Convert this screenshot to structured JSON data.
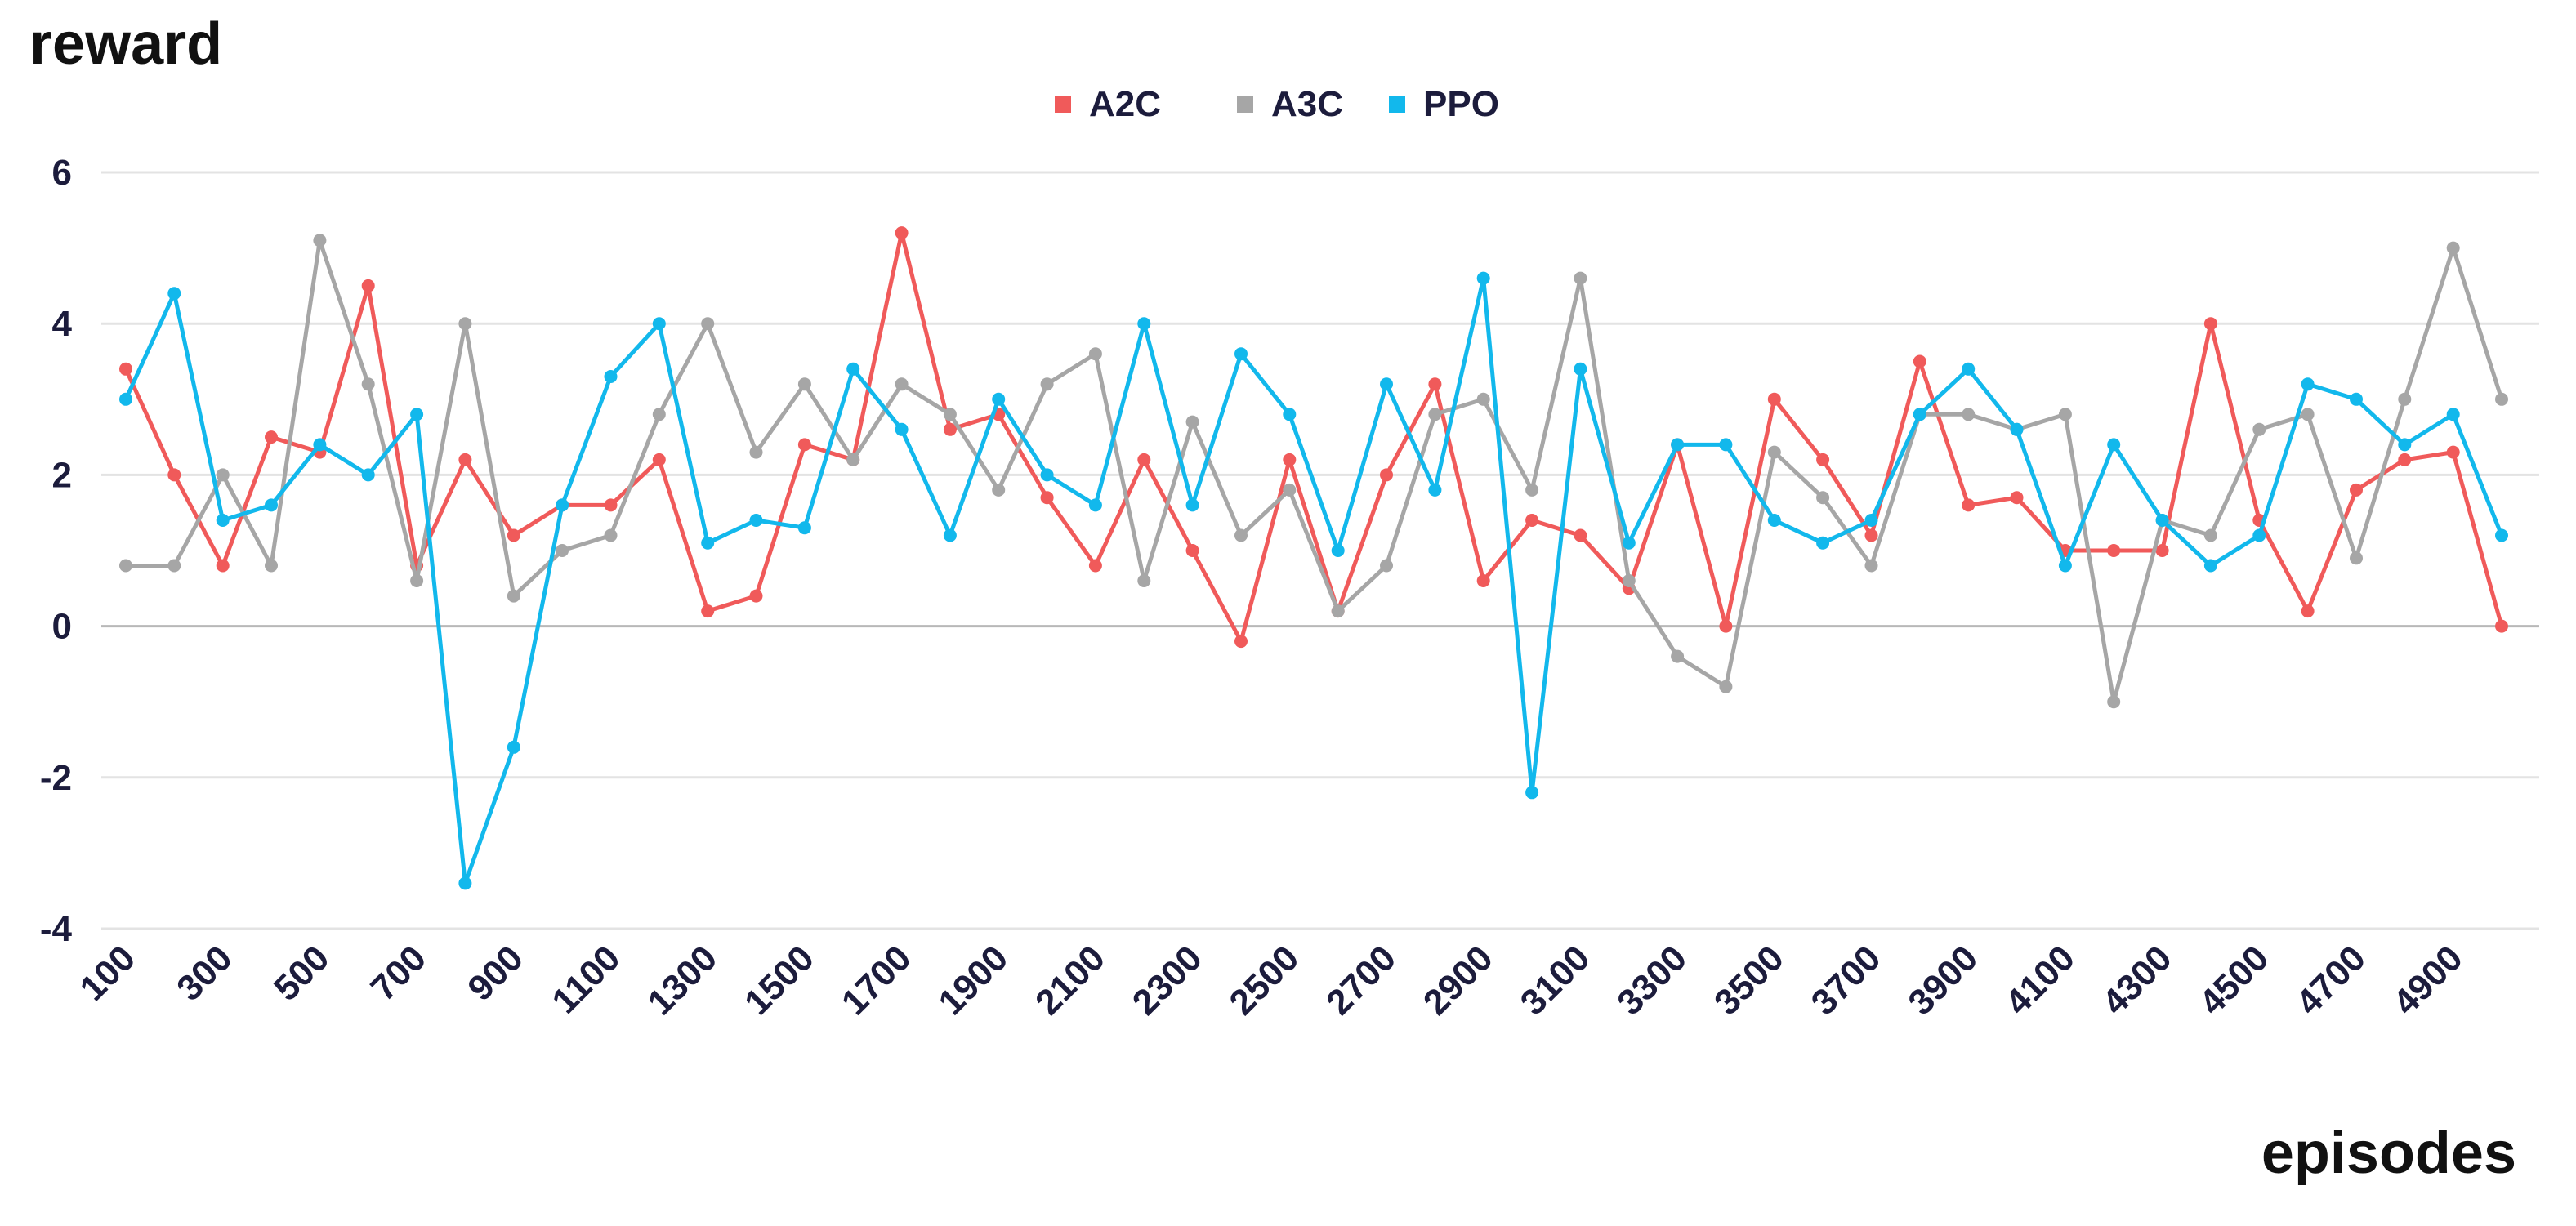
{
  "chart_data": {
    "type": "line",
    "title": "",
    "ylabel": "reward",
    "xlabel": "episodes",
    "ylim": [
      -4,
      6
    ],
    "yticks": [
      -4,
      -2,
      0,
      2,
      4,
      6
    ],
    "grid": true,
    "legend_position": "top-center",
    "x": [
      100,
      200,
      300,
      400,
      500,
      600,
      700,
      800,
      900,
      1000,
      1100,
      1200,
      1300,
      1400,
      1500,
      1600,
      1700,
      1800,
      1900,
      2000,
      2100,
      2200,
      2300,
      2400,
      2500,
      2600,
      2700,
      2800,
      2900,
      3000,
      3100,
      3200,
      3300,
      3400,
      3500,
      3600,
      3700,
      3800,
      3900,
      4000,
      4100,
      4200,
      4300,
      4400,
      4500,
      4600,
      4700,
      4800,
      4900,
      5000
    ],
    "x_tick_labels": [
      "100",
      "300",
      "500",
      "700",
      "900",
      "1100",
      "1300",
      "1500",
      "1700",
      "1900",
      "2100",
      "2300",
      "2500",
      "2700",
      "2900",
      "3100",
      "3300",
      "3500",
      "3700",
      "3900",
      "4100",
      "4300",
      "4500",
      "4700",
      "4900"
    ],
    "series": [
      {
        "name": "A2C",
        "color": "#f05a5a",
        "values": [
          3.4,
          2.0,
          0.8,
          2.5,
          2.3,
          4.5,
          0.8,
          2.2,
          1.2,
          1.6,
          1.6,
          2.2,
          0.2,
          0.4,
          2.4,
          2.2,
          5.2,
          2.6,
          2.8,
          1.7,
          0.8,
          2.2,
          1.0,
          -0.2,
          2.2,
          0.2,
          2.0,
          3.2,
          0.6,
          1.4,
          1.2,
          0.5,
          2.4,
          0.0,
          3.0,
          2.2,
          1.2,
          3.5,
          1.6,
          1.7,
          1.0,
          1.0,
          1.0,
          4.0,
          1.4,
          0.2,
          1.8,
          2.2,
          2.3,
          0.0
        ]
      },
      {
        "name": "A3C",
        "color": "#a6a6a6",
        "values": [
          0.8,
          0.8,
          2.0,
          0.8,
          5.1,
          3.2,
          0.6,
          4.0,
          0.4,
          1.0,
          1.2,
          2.8,
          4.0,
          2.3,
          3.2,
          2.2,
          3.2,
          2.8,
          1.8,
          3.2,
          3.6,
          0.6,
          2.7,
          1.2,
          1.8,
          0.2,
          0.8,
          2.8,
          3.0,
          1.8,
          4.6,
          0.6,
          -0.4,
          -0.8,
          2.3,
          1.7,
          0.8,
          2.8,
          2.8,
          2.6,
          2.8,
          -1.0,
          1.4,
          1.2,
          2.6,
          2.8,
          0.9,
          3.0,
          5.0,
          3.0
        ]
      },
      {
        "name": "PPO",
        "color": "#12b8ec",
        "values": [
          3.0,
          4.4,
          1.4,
          1.6,
          2.4,
          2.0,
          2.8,
          -3.4,
          -1.6,
          1.6,
          3.3,
          4.0,
          1.1,
          1.4,
          1.3,
          3.4,
          2.6,
          1.2,
          3.0,
          2.0,
          1.6,
          4.0,
          1.6,
          3.6,
          2.8,
          1.0,
          3.2,
          1.8,
          4.6,
          -2.2,
          3.4,
          1.1,
          2.4,
          2.4,
          1.4,
          1.1,
          1.4,
          2.8,
          3.4,
          2.6,
          0.8,
          2.4,
          1.4,
          0.8,
          1.2,
          3.2,
          3.0,
          2.4,
          2.8,
          1.2
        ]
      }
    ]
  }
}
